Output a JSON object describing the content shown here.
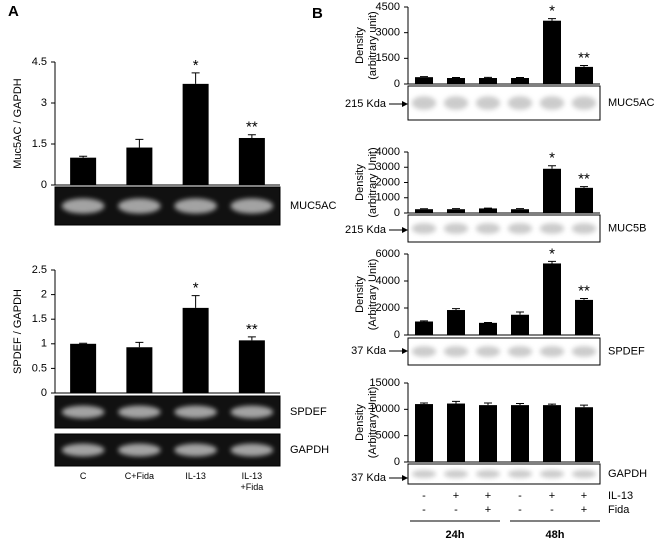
{
  "panel_labels": [
    "A",
    "B"
  ],
  "chart_data": [
    {
      "type": "bar",
      "ylabel": [
        "Muc5AC / GAPDH"
      ],
      "ylim": [
        0,
        4.5
      ],
      "yticks": [
        0,
        1.5,
        3,
        4.5
      ],
      "categories": [
        null,
        null,
        null,
        null
      ],
      "values": [
        1.0,
        1.37,
        3.7,
        1.72
      ],
      "errors": [
        0.05,
        0.3,
        0.4,
        0.12
      ],
      "annotations": [
        null,
        null,
        "*",
        "**"
      ],
      "color": "#000000",
      "gel_labels": [
        "MUC5AC"
      ],
      "marker": null
    },
    {
      "type": "bar",
      "ylabel": [
        "SPDEF / GAPDH"
      ],
      "ylim": [
        0,
        2.5
      ],
      "yticks": [
        0,
        0.5,
        1,
        1.5,
        2,
        2.5
      ],
      "categories": [
        "C",
        "C+Fida",
        "IL-13",
        "IL-13 +Fida"
      ],
      "values": [
        1.0,
        0.93,
        1.73,
        1.07
      ],
      "errors": [
        0.01,
        0.1,
        0.25,
        0.07
      ],
      "annotations": [
        null,
        null,
        "*",
        "**"
      ],
      "color": "#000000",
      "gel_labels": [
        "SPDEF",
        "GAPDH"
      ],
      "marker": null
    },
    {
      "type": "bar",
      "ylabel": [
        "Density",
        "(arbitrary unit)"
      ],
      "ylim": [
        0,
        4500
      ],
      "yticks": [
        0,
        1500,
        3000,
        4500
      ],
      "categories": [
        null,
        null,
        null,
        null,
        null,
        null
      ],
      "values": [
        400,
        350,
        350,
        350,
        3700,
        1000
      ],
      "errors": [
        30,
        30,
        40,
        30,
        120,
        80
      ],
      "annotations": [
        null,
        null,
        null,
        null,
        "*",
        "**"
      ],
      "color": "#000000",
      "gel_labels": [
        "MUC5AC"
      ],
      "marker": "215 Kda"
    },
    {
      "type": "bar",
      "ylabel": [
        "Density",
        "(arbitrary Unit)"
      ],
      "ylim": [
        0,
        4000
      ],
      "yticks": [
        0,
        1000,
        2000,
        3000,
        4000
      ],
      "categories": [
        null,
        null,
        null,
        null,
        null,
        null
      ],
      "values": [
        250,
        250,
        300,
        250,
        2900,
        1650
      ],
      "errors": [
        30,
        40,
        20,
        40,
        200,
        80
      ],
      "annotations": [
        null,
        null,
        null,
        null,
        "*",
        "**"
      ],
      "color": "#000000",
      "gel_labels": [
        "MUC5B"
      ],
      "marker": "215 Kda"
    },
    {
      "type": "bar",
      "ylabel": [
        "Density",
        "(Arbitrary Unit)"
      ],
      "ylim": [
        0,
        6000
      ],
      "yticks": [
        0,
        2000,
        4000,
        6000
      ],
      "categories": [
        null,
        null,
        null,
        null,
        null,
        null
      ],
      "values": [
        1000,
        1850,
        900,
        1500,
        5300,
        2600
      ],
      "errors": [
        50,
        100,
        30,
        200,
        150,
        100
      ],
      "annotations": [
        null,
        null,
        null,
        null,
        "*",
        "**"
      ],
      "color": "#000000",
      "gel_labels": [
        "SPDEF"
      ],
      "marker": "37 Kda"
    },
    {
      "type": "bar",
      "ylabel": [
        "Density",
        "(Arbitrary Unit)"
      ],
      "ylim": [
        0,
        15000
      ],
      "yticks": [
        0,
        5000,
        10000,
        15000
      ],
      "categories": [
        null,
        null,
        null,
        null,
        null,
        null
      ],
      "values": [
        11000,
        11100,
        10800,
        10800,
        10800,
        10400
      ],
      "errors": [
        200,
        400,
        400,
        300,
        200,
        400
      ],
      "annotations": [
        null,
        null,
        null,
        null,
        null,
        null
      ],
      "color": "#000000",
      "gel_labels": [
        "GAPDH"
      ],
      "marker": "37 Kda"
    }
  ],
  "conditions": {
    "rows": [
      {
        "name": "IL-13",
        "values": [
          "-",
          "+",
          "+",
          "-",
          "+",
          "+"
        ]
      },
      {
        "name": "Fida",
        "values": [
          "-",
          "-",
          "+",
          "-",
          "-",
          "+"
        ]
      }
    ],
    "groups": [
      "24h",
      "48h"
    ]
  }
}
